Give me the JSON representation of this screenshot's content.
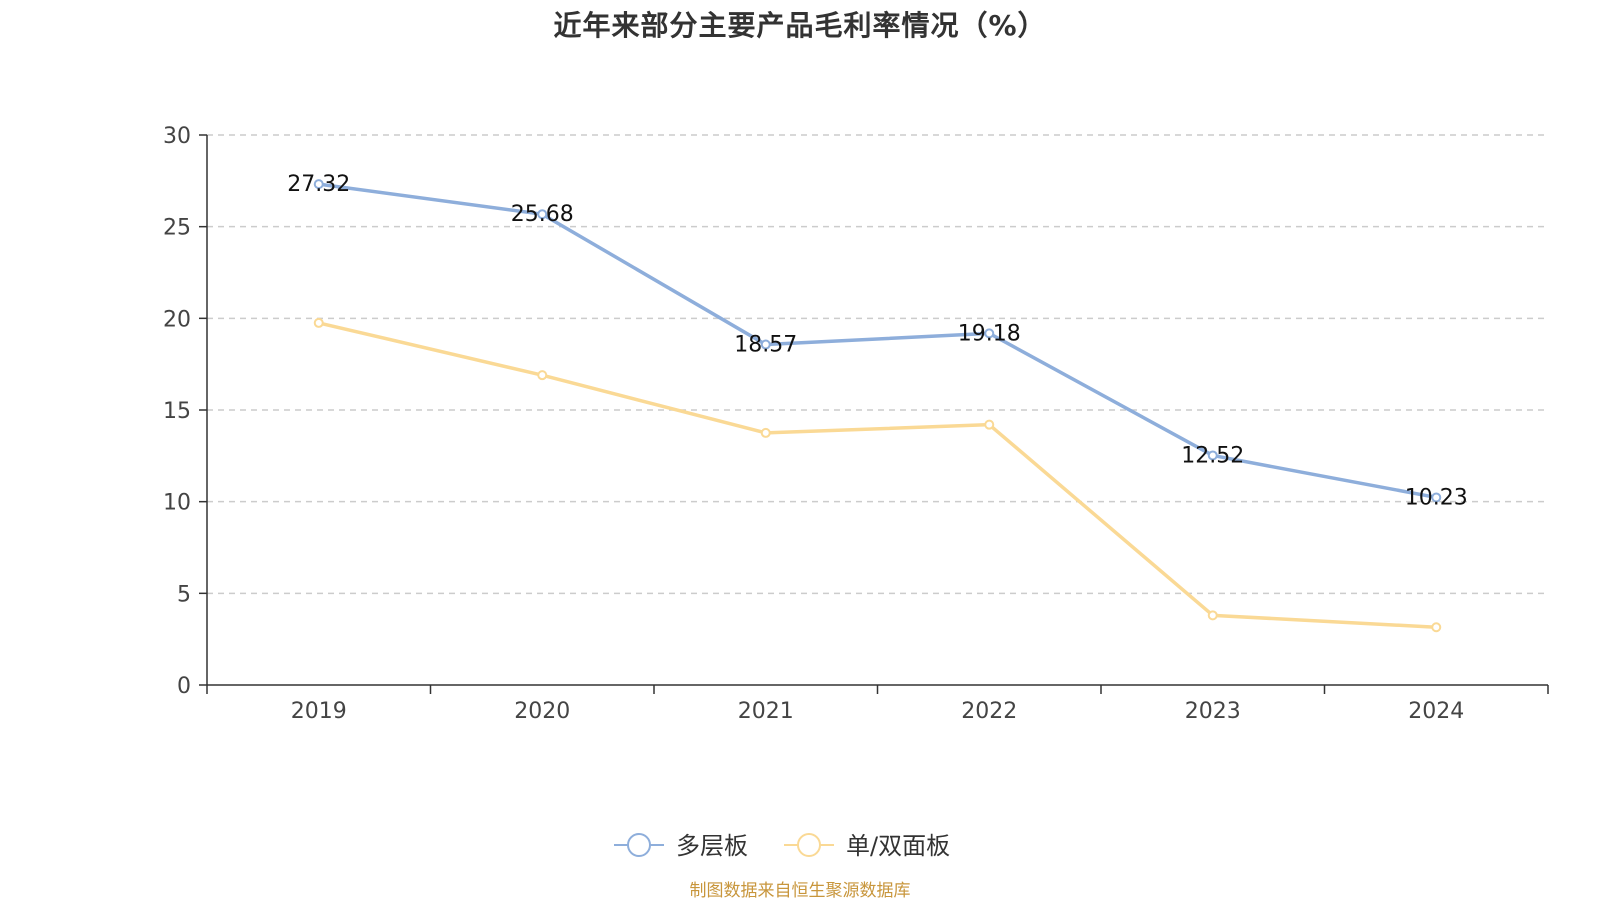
{
  "chart_data": {
    "type": "line",
    "title": "近年来部分主要产品毛利率情况（%）",
    "categories": [
      "2019",
      "2020",
      "2021",
      "2022",
      "2023",
      "2024"
    ],
    "series": [
      {
        "name": "多层板",
        "color": "#8eaedb",
        "values": [
          27.32,
          25.68,
          18.57,
          19.18,
          12.52,
          10.23
        ],
        "show_labels": true,
        "labels": [
          "27.32",
          "25.68",
          "18.57",
          "19.18",
          "12.52",
          "10.23"
        ]
      },
      {
        "name": "单/双面板",
        "color": "#fad995",
        "values": [
          19.75,
          16.9,
          13.75,
          14.2,
          3.8,
          3.15
        ],
        "show_labels": false
      }
    ],
    "ylim": [
      0,
      30
    ],
    "yticks": [
      0,
      5,
      10,
      15,
      20,
      25,
      30
    ],
    "ytick_labels": [
      "0",
      "5",
      "10",
      "15",
      "20",
      "25",
      "30"
    ],
    "grid": true,
    "legend_position": "bottom-center",
    "xlabel": "",
    "ylabel": ""
  },
  "source_note": "制图数据来自恒生聚源数据库"
}
